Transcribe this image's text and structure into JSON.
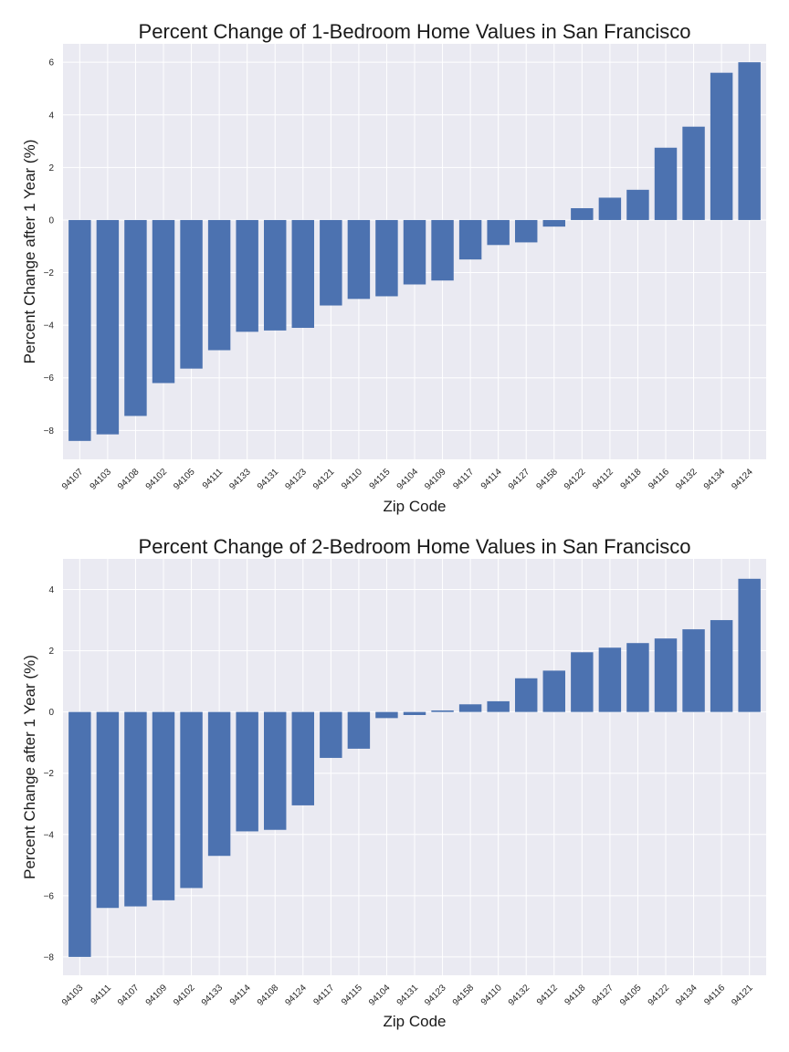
{
  "colors": {
    "bar": "#4c72b0",
    "background": "#eaeaf2",
    "grid": "#ffffff"
  },
  "chart_data": [
    {
      "type": "bar",
      "title": "Percent Change of 1-Bedroom Home Values in San Francisco",
      "xlabel": "Zip Code",
      "ylabel": "Percent Change after 1 Year (%)",
      "ylim": [
        -9.1,
        6.7
      ],
      "yticks": [
        -8,
        -6,
        -4,
        -2,
        0,
        2,
        4,
        6
      ],
      "grid": true,
      "categories": [
        "94107",
        "94103",
        "94108",
        "94102",
        "94105",
        "94111",
        "94133",
        "94131",
        "94123",
        "94121",
        "94110",
        "94115",
        "94104",
        "94109",
        "94117",
        "94114",
        "94127",
        "94158",
        "94122",
        "94112",
        "94118",
        "94116",
        "94132",
        "94134",
        "94124"
      ],
      "values": [
        -8.4,
        -8.15,
        -7.45,
        -6.2,
        -5.65,
        -4.95,
        -4.25,
        -4.2,
        -4.1,
        -3.25,
        -3.0,
        -2.9,
        -2.45,
        -2.3,
        -1.5,
        -0.95,
        -0.85,
        -0.25,
        0.45,
        0.85,
        1.15,
        2.75,
        3.55,
        5.6,
        6.0
      ]
    },
    {
      "type": "bar",
      "title": "Percent Change of 2-Bedroom Home Values in San Francisco",
      "xlabel": "Zip Code",
      "ylabel": "Percent Change after 1 Year (%)",
      "ylim": [
        -8.6,
        5.0
      ],
      "yticks": [
        -8,
        -6,
        -4,
        -2,
        0,
        2,
        4
      ],
      "grid": true,
      "categories": [
        "94103",
        "94111",
        "94107",
        "94109",
        "94102",
        "94133",
        "94114",
        "94108",
        "94124",
        "94117",
        "94115",
        "94104",
        "94131",
        "94123",
        "94158",
        "94110",
        "94132",
        "94112",
        "94118",
        "94127",
        "94105",
        "94122",
        "94134",
        "94116",
        "94121"
      ],
      "values": [
        -8.0,
        -6.4,
        -6.35,
        -6.15,
        -5.75,
        -4.7,
        -3.9,
        -3.85,
        -3.05,
        -1.5,
        -1.2,
        -0.2,
        -0.1,
        0.05,
        0.25,
        0.35,
        1.1,
        1.35,
        1.95,
        2.1,
        2.25,
        2.4,
        2.7,
        3.0,
        4.35
      ]
    }
  ]
}
